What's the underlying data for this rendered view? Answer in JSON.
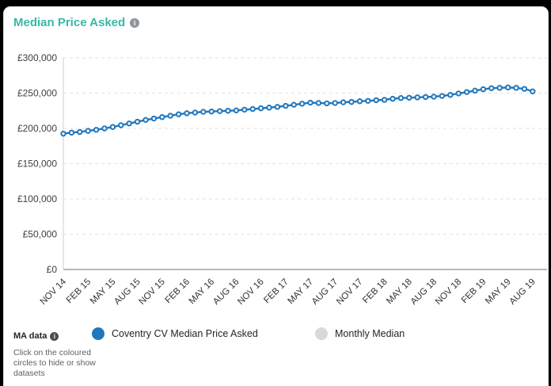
{
  "header": {
    "title": "Median Price Asked",
    "title_color": "#38b9a6",
    "info_icon": "info-circle"
  },
  "footer": {
    "ma_label": "MA data",
    "ma_info_icon": "info-circle",
    "instructions": "Click on the coloured circles to hide or show datasets"
  },
  "legend": {
    "items": [
      {
        "label": "Coventry CV Median Price Asked",
        "color": "#2077bd",
        "state": "visible"
      },
      {
        "label": "Monthly Median",
        "color": "#d9d9d9",
        "state": "hidden"
      }
    ]
  },
  "chart_data": {
    "type": "line",
    "title": "Median Price Asked",
    "x_start": "NOV 14",
    "x_end": "AUG 19",
    "x_frequency": "monthly",
    "xtick_interval": 3,
    "xtick_labels": [
      "NOV 14",
      "FEB 15",
      "MAY 15",
      "AUG 15",
      "NOV 15",
      "FEB 16",
      "MAY 16",
      "AUG 16",
      "NOV 16",
      "FEB 17",
      "MAY 17",
      "AUG 17",
      "NOV 17",
      "FEB 18",
      "MAY 18",
      "AUG 18",
      "NOV 18",
      "FEB 19",
      "MAY 19",
      "AUG 19"
    ],
    "ytick_values": [
      0,
      50000,
      100000,
      150000,
      200000,
      250000,
      300000
    ],
    "ytick_labels": [
      "£0",
      "£50,000",
      "£100,000",
      "£150,000",
      "£200,000",
      "£250,000",
      "£300,000"
    ],
    "ylim": [
      0,
      300000
    ],
    "grid": "dashed-horizontal",
    "legend_position": "bottom",
    "series": [
      {
        "name": "Coventry CV Median Price Asked",
        "color": "#2077bd",
        "marker": "open-circle",
        "values": [
          192500,
          194000,
          195000,
          196500,
          198000,
          200000,
          202000,
          204500,
          207000,
          209500,
          212000,
          214000,
          216000,
          218000,
          220000,
          221500,
          222500,
          223500,
          224000,
          224500,
          225000,
          225500,
          226500,
          227500,
          228500,
          229500,
          230500,
          232000,
          233500,
          235000,
          236500,
          236000,
          235500,
          236000,
          237000,
          237500,
          238500,
          239000,
          240000,
          240500,
          242000,
          243000,
          243500,
          244000,
          244500,
          245000,
          246000,
          247500,
          249500,
          251500,
          253500,
          255500,
          257000,
          257500,
          258000,
          257500,
          256000,
          252500
        ]
      }
    ]
  }
}
